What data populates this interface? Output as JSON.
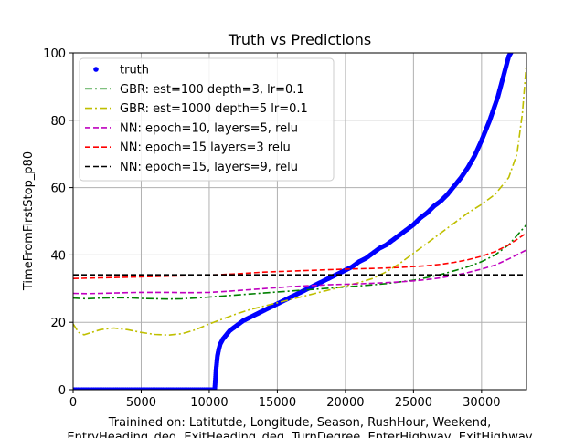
{
  "chart_data": {
    "type": "line",
    "title": "Truth vs Predictions",
    "ylabel": "TimeFromFirstStop_p80",
    "xlabel_lines": [
      "Trainined on:  Latitutde, Longitude, Season, RushHour, Weekend,",
      "EntryHeading_deg, ExitHeading_deg, TurnDegree, EnterHighway, ExitHighway"
    ],
    "xlim": [
      0,
      33300
    ],
    "ylim": [
      0,
      100
    ],
    "xticks": [
      0,
      5000,
      10000,
      15000,
      20000,
      25000,
      30000
    ],
    "yticks": [
      0,
      20,
      40,
      60,
      80,
      100
    ],
    "grid": true,
    "legend_position": "upper-left",
    "series": [
      {
        "name": "truth",
        "style": "markers",
        "color": "#0000ff",
        "x": [
          0,
          500,
          1000,
          1500,
          2000,
          2500,
          3000,
          3500,
          4000,
          4500,
          5000,
          5500,
          6000,
          6500,
          7000,
          7500,
          8000,
          8500,
          9000,
          9500,
          10000,
          10400,
          10500,
          10550,
          10600,
          10700,
          10800,
          11000,
          11200,
          11500,
          12000,
          12500,
          13000,
          13500,
          14000,
          14500,
          15000,
          15500,
          16000,
          16500,
          17000,
          17500,
          18000,
          18500,
          19000,
          19500,
          20000,
          20500,
          21000,
          21500,
          22000,
          22500,
          23000,
          23500,
          24000,
          24500,
          25000,
          25500,
          26000,
          26500,
          27000,
          27500,
          28000,
          28500,
          29000,
          29500,
          30000,
          30300,
          30600,
          30900,
          31200,
          31400,
          31600,
          31800,
          32000,
          32150
        ],
        "y": [
          0,
          0,
          0,
          0,
          0,
          0,
          0,
          0,
          0,
          0,
          0,
          0,
          0,
          0,
          0,
          0,
          0,
          0,
          0,
          0,
          0,
          0,
          6,
          8,
          10,
          12,
          13.5,
          15,
          16,
          17.5,
          19,
          20.5,
          21.5,
          22.5,
          23.5,
          24.5,
          25.5,
          26.5,
          27.5,
          28.5,
          29.5,
          30.5,
          31.5,
          32.5,
          33.5,
          34.5,
          35.5,
          36.5,
          38,
          39,
          40.5,
          42,
          43,
          44.5,
          46,
          47.5,
          49,
          51,
          52.5,
          54.5,
          56,
          58,
          60.5,
          63,
          66,
          69.5,
          74,
          77,
          80,
          83.5,
          87,
          90,
          93,
          96,
          99,
          100
        ]
      },
      {
        "name": "GBR: est=100  depth=3, lr=0.1",
        "style": "dashdot",
        "color": "#008000",
        "x": [
          0,
          1000,
          2000,
          3000,
          4000,
          5000,
          6000,
          7000,
          8000,
          9000,
          10000,
          11000,
          12000,
          13000,
          14000,
          15000,
          16000,
          17000,
          18000,
          19000,
          20000,
          21000,
          22000,
          23000,
          24000,
          25000,
          26000,
          27000,
          28000,
          29000,
          30000,
          31000,
          32000,
          33300
        ],
        "y": [
          27.2,
          27,
          27.2,
          27.3,
          27.3,
          27.1,
          27,
          26.9,
          27,
          27.2,
          27.5,
          27.8,
          28.1,
          28.4,
          28.7,
          29,
          29.3,
          29.6,
          29.9,
          30.2,
          30.5,
          30.8,
          31.1,
          31.5,
          32,
          32.5,
          33.3,
          34.2,
          35.3,
          36.5,
          38,
          40,
          43,
          49
        ]
      },
      {
        "name": "GBR: est=1000 depth=5 lr=0.1",
        "style": "dashdot",
        "color": "#bfbf00",
        "x": [
          0,
          400,
          800,
          1200,
          2000,
          3000,
          4000,
          5000,
          6000,
          7000,
          8000,
          9000,
          10000,
          11000,
          12000,
          13000,
          14000,
          15000,
          16000,
          17000,
          18000,
          19000,
          20000,
          21000,
          22000,
          23000,
          24000,
          25000,
          26000,
          27000,
          28000,
          29000,
          30000,
          31000,
          32000,
          32600,
          33000,
          33300
        ],
        "y": [
          19.5,
          17,
          16.3,
          16.8,
          17.8,
          18.3,
          17.8,
          17,
          16.4,
          16.2,
          16.6,
          17.8,
          19.5,
          21,
          22.5,
          23.8,
          24.8,
          25.8,
          26.8,
          27.8,
          28.8,
          29.8,
          30.8,
          31.8,
          33,
          35,
          37.5,
          40.5,
          43.5,
          46.5,
          49.5,
          52.5,
          55,
          58,
          63,
          70,
          82,
          97
        ]
      },
      {
        "name": "NN: epoch=10, layers=5, relu",
        "style": "dashed",
        "color": "#bf00bf",
        "x": [
          0,
          1000,
          2000,
          3000,
          4000,
          5000,
          6000,
          7000,
          8000,
          9000,
          10000,
          11000,
          12000,
          13000,
          14000,
          15000,
          16000,
          17000,
          18000,
          19000,
          20000,
          21000,
          22000,
          23000,
          24000,
          25000,
          26000,
          27000,
          28000,
          29000,
          30000,
          31000,
          32000,
          33300
        ],
        "y": [
          28.6,
          28.5,
          28.6,
          28.7,
          28.8,
          28.9,
          28.9,
          28.9,
          28.8,
          28.8,
          28.9,
          29.1,
          29.4,
          29.7,
          30,
          30.3,
          30.6,
          30.8,
          31,
          31.2,
          31.3,
          31.4,
          31.6,
          31.8,
          32,
          32.3,
          32.7,
          33.2,
          33.9,
          34.8,
          35.8,
          37,
          38.8,
          41.5
        ]
      },
      {
        "name": "NN: epoch=15 layers=3 relu",
        "style": "dashed",
        "color": "#ff0000",
        "x": [
          0,
          2000,
          4000,
          6000,
          8000,
          10000,
          12000,
          14000,
          16000,
          18000,
          20000,
          22000,
          24000,
          26000,
          27000,
          28000,
          29000,
          30000,
          31000,
          32000,
          33300
        ],
        "y": [
          33,
          33.2,
          33.4,
          33.6,
          33.8,
          34,
          34.4,
          34.9,
          35.2,
          35.5,
          35.8,
          36,
          36.3,
          36.8,
          37.2,
          37.8,
          38.6,
          39.6,
          41,
          43,
          46.5
        ]
      },
      {
        "name": "NN: epoch=15, layers=9, relu",
        "style": "dashed",
        "color": "#000000",
        "x": [
          0,
          33300
        ],
        "y": [
          34.1,
          34.1
        ]
      }
    ]
  }
}
